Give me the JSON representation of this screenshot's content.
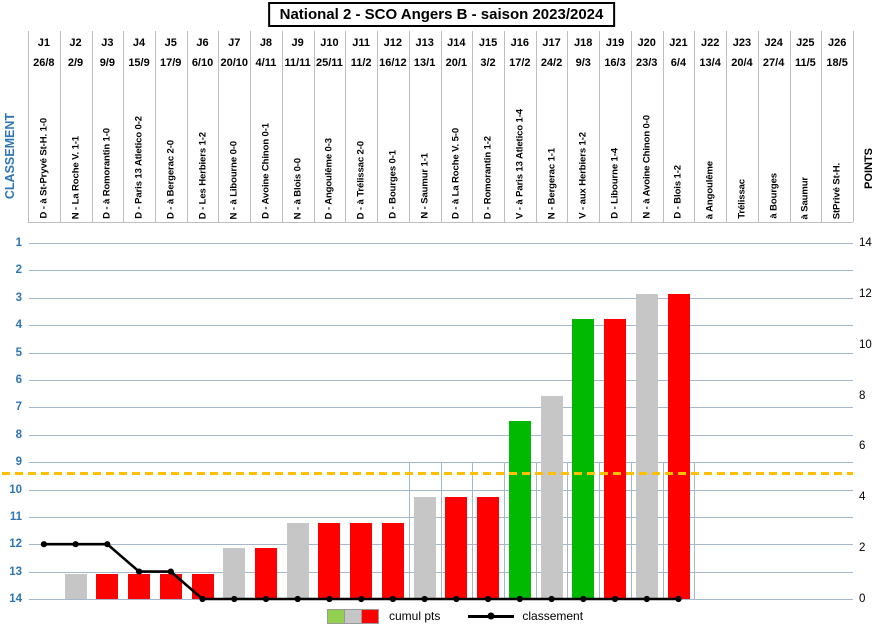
{
  "title": "National 2 - SCO Angers B - saison 2023/2024",
  "legend": {
    "bars_label": "cumul pts",
    "line_label": "classement"
  },
  "colors": {
    "win": "#00b900",
    "draw": "#c6c6c6",
    "loss": "#ff0000",
    "legend_green": "#92d050",
    "legend_grey": "#c6c6c6",
    "legend_red": "#ff0000",
    "gridline": "#a3b8cb",
    "threshold": "#ffc000",
    "classement_text": "#2e75b6",
    "line": "#000000",
    "header_border": "#bfbfbf"
  },
  "chart_data": {
    "type": "bar+line",
    "title": "National 2 - SCO Angers B - saison 2023/2024",
    "categories": [
      "J1",
      "J2",
      "J3",
      "J4",
      "J5",
      "J6",
      "J7",
      "J8",
      "J9",
      "J10",
      "J11",
      "J12",
      "J13",
      "J14",
      "J15",
      "J16",
      "J17",
      "J18",
      "J19",
      "J20",
      "J21",
      "J22",
      "J23",
      "J24",
      "J25",
      "J26"
    ],
    "dates": [
      "26/8",
      "2/9",
      "9/9",
      "15/9",
      "17/9",
      "6/10",
      "20/10",
      "4/11",
      "11/11",
      "25/11",
      "11/2",
      "16/12",
      "13/1",
      "20/1",
      "3/2",
      "17/2",
      "24/2",
      "9/3",
      "16/3",
      "23/3",
      "6/4",
      "13/4",
      "20/4",
      "27/4",
      "11/5",
      "18/5"
    ],
    "match_labels": [
      "D - à St-Pryvé St-H. 1-0",
      "N - La Roche V. 1-1",
      "D - à Romorantin 1-0",
      "D - Paris 13 Atletico 0-2",
      "D - à Bergerac 2-0",
      "D - Les Herbiers 1-2",
      "N - à Libourne 0-0",
      "D - Avoine Chinon 0-1",
      "N - à Blois 0-0",
      "D - Angoulême 0-3",
      "D - à Trélissac 2-0",
      "D - Bourges 0-1",
      "N - Saumur 1-1",
      "D - à La Roche V. 5-0",
      "D - Romorantin 1-2",
      "V - à Paris 13 Atletico 1-4",
      "N - Bergerac 1-1",
      "V - aux Herbiers 1-2",
      "D - Libourne 1-4",
      "N - à Avoine Chinon 0-0",
      "D - Blois 1-2",
      "à Angoulême",
      "Trélissac",
      "à Bourges",
      "à Saumur",
      "StPrivé St-H."
    ],
    "results": [
      "D",
      "N",
      "D",
      "D",
      "D",
      "D",
      "N",
      "D",
      "N",
      "D",
      "D",
      "D",
      "N",
      "D",
      "D",
      "V",
      "N",
      "V",
      "D",
      "N",
      "D",
      null,
      null,
      null,
      null,
      null
    ],
    "series": [
      {
        "name": "cumul pts",
        "type": "bar",
        "values": [
          0,
          1,
          1,
          1,
          1,
          1,
          2,
          2,
          3,
          3,
          3,
          3,
          4,
          4,
          4,
          7,
          8,
          11,
          11,
          12,
          12,
          null,
          null,
          null,
          null,
          null
        ]
      },
      {
        "name": "classement",
        "type": "line",
        "values": [
          12,
          12,
          12,
          13,
          13,
          14,
          14,
          14,
          14,
          14,
          14,
          14,
          14,
          14,
          14,
          14,
          14,
          14,
          14,
          14,
          14,
          null,
          null,
          null,
          null,
          null
        ]
      }
    ],
    "left_axis": {
      "label": "CLASSEMENT",
      "min": 1,
      "max": 14,
      "ticks": [
        1,
        2,
        3,
        4,
        5,
        6,
        7,
        8,
        9,
        10,
        11,
        12,
        13,
        14
      ]
    },
    "right_axis": {
      "label": "POINTS",
      "min": 0,
      "max": 14,
      "ticks": [
        0,
        2,
        4,
        6,
        8,
        10,
        12,
        14
      ]
    },
    "threshold_line": {
      "points_value": 4.95,
      "style": "dashed"
    },
    "grid": true,
    "legend_position": "bottom"
  }
}
